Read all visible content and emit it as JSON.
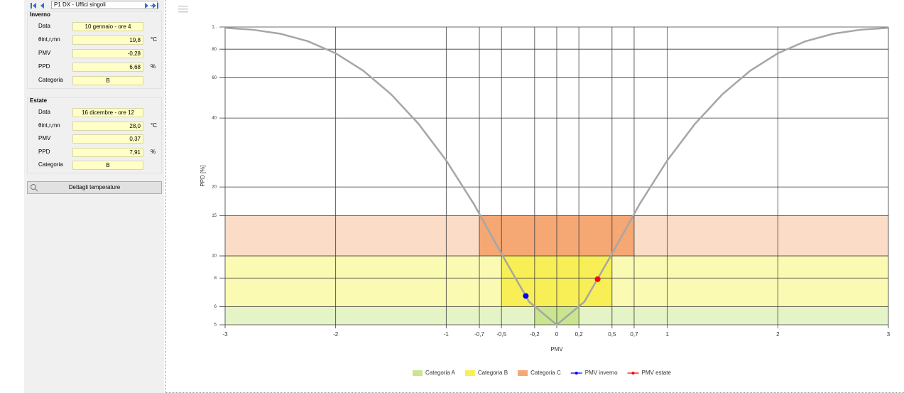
{
  "toolbar": {
    "selector": "P1 DX - Uffici singoli"
  },
  "panel": {
    "winter": {
      "title": "Inverno",
      "rows": [
        [
          "Data",
          "10 gennaio - ore 4"
        ],
        [
          "θint,r,mn",
          "19,8",
          "°C"
        ],
        [
          "PMV",
          "-0,28"
        ],
        [
          "PPD",
          "6,68",
          "%"
        ],
        [
          "Categoria",
          "B"
        ]
      ]
    },
    "summer": {
      "title": "Estate",
      "rows": [
        [
          "Data",
          "16 dicembre - ore 12"
        ],
        [
          "θint,r,mn",
          "28,0",
          "°C"
        ],
        [
          "PMV",
          "0,37"
        ],
        [
          "PPD",
          "7,91",
          "%"
        ],
        [
          "Categoria",
          "B"
        ]
      ]
    },
    "button": "Dettagli temperature"
  },
  "chart_data": {
    "type": "line",
    "x_label": "PMV",
    "y_label": "PPD [%]",
    "ylog": true,
    "grid": true,
    "color": "#a6a6a6",
    "x": [
      -3,
      -2.75,
      -2.5,
      -2.25,
      -2,
      -1.75,
      -1.5,
      -1.25,
      -1,
      -0.75,
      -0.5,
      -0.25,
      0,
      0.25,
      0.5,
      0.75,
      1,
      1.25,
      1.5,
      1.75,
      2,
      2.25,
      2.5,
      2.75,
      3
    ],
    "values": [
      99.12,
      97.31,
      93.43,
      86.65,
      76.76,
      64.41,
      50.9,
      37.72,
      26.12,
      16.85,
      10.22,
      6.3,
      5,
      6.3,
      10.22,
      16.85,
      26.12,
      37.72,
      50.9,
      64.41,
      76.76,
      86.65,
      93.43,
      97.31,
      99.12
    ],
    "xlim": [
      -3,
      3
    ],
    "ylim": [
      5,
      100
    ],
    "xticks": [
      -3,
      -2,
      -1,
      {
        "value": -0.7,
        "label": "-0,7"
      },
      {
        "value": -0.5,
        "label": "-0,5"
      },
      {
        "value": -0.2,
        "label": "-0,2"
      },
      0,
      {
        "value": 0.2,
        "label": "0,2"
      },
      {
        "value": 0.5,
        "label": "0,5"
      },
      {
        "value": 0.7,
        "label": "0,7"
      },
      1,
      2,
      3
    ],
    "yticks": [
      {
        "value": 100,
        "label": "1.."
      },
      80,
      60,
      40,
      20,
      15,
      10,
      8,
      6,
      5
    ],
    "bands": [
      {
        "name": "Categoria A",
        "color": "#c9e58f",
        "light": "#e4f4c6",
        "pmv": [
          -0.2,
          0.2
        ],
        "ppd": [
          5,
          6
        ]
      },
      {
        "name": "Categoria B",
        "color": "#f7ef55",
        "light": "#fbfab2",
        "pmv": [
          -0.5,
          0.5
        ],
        "ppd": [
          6,
          10
        ]
      },
      {
        "name": "Categoria C",
        "color": "#f5a774",
        "light": "#fbdcc7",
        "pmv": [
          -0.7,
          0.7
        ],
        "ppd": [
          10,
          15
        ]
      }
    ],
    "points": [
      {
        "name": "PMV inverno",
        "color": "#0000ff",
        "x": -0.28,
        "value": 6.68
      },
      {
        "name": "PMV estate",
        "color": "#ff0000",
        "x": 0.37,
        "value": 7.91
      }
    ]
  }
}
